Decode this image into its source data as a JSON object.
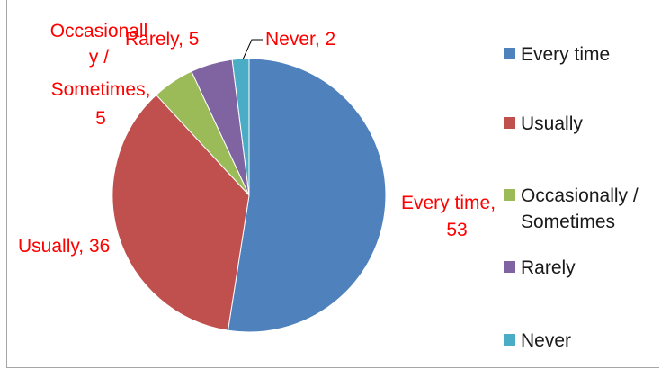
{
  "chart_data": {
    "type": "pie",
    "title": "",
    "categories": [
      "Every time",
      "Usually",
      "Occasionally / Sometimes",
      "Rarely",
      "Never"
    ],
    "values": [
      53,
      36,
      5,
      5,
      2
    ],
    "colors": [
      "#4f81bd",
      "#c0504d",
      "#9bbb59",
      "#8064a2",
      "#4bacc6"
    ],
    "data_labels": [
      "Every time, 53",
      "Usually, 36",
      "Occasionally / Sometimes, 5",
      "Rarely, 5",
      "Never, 2"
    ],
    "legend": {
      "position": "right",
      "entries": [
        "Every time",
        "Usually",
        "Occasionally / Sometimes",
        "Rarely",
        "Never"
      ]
    },
    "label_color": "#ff0000",
    "grid": false
  }
}
